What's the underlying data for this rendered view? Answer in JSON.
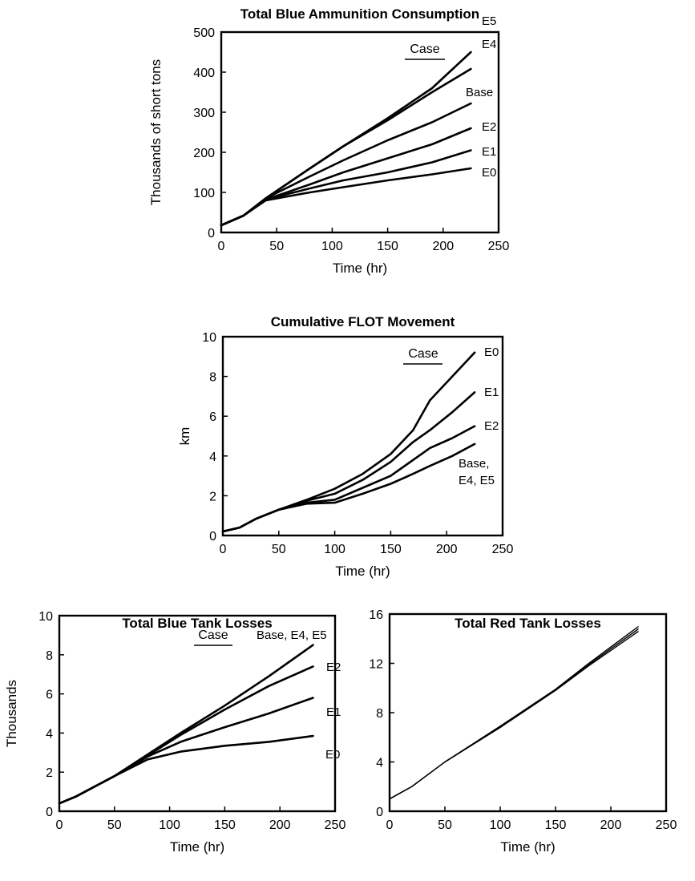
{
  "chart_data": [
    {
      "id": "ammo",
      "type": "line",
      "title": "Total Blue Ammunition Consumption",
      "xlabel": "Time (hr)",
      "ylabel": "Thousands of short tons",
      "xlim": [
        0,
        250
      ],
      "ylim": [
        0,
        500
      ],
      "xticks": [
        0,
        50,
        100,
        150,
        200,
        250
      ],
      "yticks": [
        0,
        100,
        200,
        300,
        400,
        500
      ],
      "legend_heading": "Case",
      "series": [
        {
          "name": "E5",
          "x": [
            0,
            20,
            40,
            80,
            110,
            150,
            190,
            225
          ],
          "y": [
            18,
            42,
            85,
            160,
            215,
            285,
            360,
            450
          ]
        },
        {
          "name": "E4",
          "x": [
            0,
            20,
            40,
            80,
            110,
            150,
            190,
            225
          ],
          "y": [
            18,
            42,
            85,
            160,
            215,
            280,
            350,
            408
          ]
        },
        {
          "name": "Base",
          "x": [
            0,
            20,
            40,
            80,
            110,
            150,
            190,
            225
          ],
          "y": [
            18,
            42,
            85,
            140,
            180,
            230,
            275,
            322
          ]
        },
        {
          "name": "E2",
          "x": [
            0,
            20,
            40,
            80,
            110,
            150,
            190,
            225
          ],
          "y": [
            18,
            42,
            82,
            120,
            150,
            185,
            220,
            260
          ]
        },
        {
          "name": "E1",
          "x": [
            0,
            20,
            40,
            80,
            110,
            150,
            190,
            225
          ],
          "y": [
            18,
            42,
            82,
            110,
            130,
            150,
            175,
            205
          ]
        },
        {
          "name": "E0",
          "x": [
            0,
            20,
            40,
            80,
            110,
            150,
            190,
            225
          ],
          "y": [
            18,
            42,
            80,
            100,
            113,
            130,
            145,
            160
          ]
        }
      ]
    },
    {
      "id": "flot",
      "type": "line",
      "title": "Cumulative FLOT Movement",
      "xlabel": "Time (hr)",
      "ylabel": "km",
      "xlim": [
        0,
        250
      ],
      "ylim": [
        0,
        10
      ],
      "xticks": [
        0,
        50,
        100,
        150,
        200,
        250
      ],
      "yticks": [
        0,
        2,
        4,
        6,
        8,
        10
      ],
      "legend_heading": "Case",
      "series": [
        {
          "name": "E0",
          "x": [
            0,
            15,
            30,
            50,
            75,
            100,
            125,
            150,
            170,
            185,
            205,
            225
          ],
          "y": [
            0.2,
            0.4,
            0.85,
            1.3,
            1.8,
            2.35,
            3.1,
            4.1,
            5.3,
            6.8,
            8.0,
            9.2
          ]
        },
        {
          "name": "E1",
          "x": [
            0,
            15,
            30,
            50,
            75,
            100,
            125,
            150,
            170,
            185,
            205,
            225
          ],
          "y": [
            0.2,
            0.4,
            0.85,
            1.3,
            1.75,
            2.1,
            2.8,
            3.7,
            4.7,
            5.3,
            6.2,
            7.2
          ]
        },
        {
          "name": "E2",
          "x": [
            0,
            15,
            30,
            50,
            75,
            100,
            125,
            150,
            170,
            185,
            205,
            225
          ],
          "y": [
            0.2,
            0.4,
            0.85,
            1.3,
            1.65,
            1.8,
            2.4,
            3.0,
            3.8,
            4.4,
            4.9,
            5.5
          ]
        },
        {
          "name": "Base, E4, E5",
          "x": [
            0,
            15,
            30,
            50,
            75,
            100,
            125,
            150,
            170,
            185,
            205,
            225
          ],
          "y": [
            0.2,
            0.4,
            0.85,
            1.3,
            1.6,
            1.65,
            2.1,
            2.6,
            3.1,
            3.5,
            4.0,
            4.6
          ]
        }
      ]
    },
    {
      "id": "blue_tanks",
      "type": "line",
      "title": "Total Blue Tank Losses",
      "xlabel": "Time (hr)",
      "ylabel": "Thousands",
      "xlim": [
        0,
        250
      ],
      "ylim": [
        0,
        10
      ],
      "xticks": [
        0,
        50,
        100,
        150,
        200,
        250
      ],
      "yticks": [
        0,
        2,
        4,
        6,
        8,
        10
      ],
      "legend_heading": "Case",
      "series": [
        {
          "name": "Base, E4, E5",
          "x": [
            0,
            15,
            50,
            80,
            110,
            150,
            190,
            230
          ],
          "y": [
            0.4,
            0.75,
            1.8,
            2.9,
            4.0,
            5.4,
            6.9,
            8.5
          ]
        },
        {
          "name": "E2",
          "x": [
            0,
            15,
            50,
            80,
            110,
            150,
            190,
            230
          ],
          "y": [
            0.4,
            0.75,
            1.8,
            2.85,
            3.9,
            5.2,
            6.4,
            7.4
          ]
        },
        {
          "name": "E1",
          "x": [
            0,
            15,
            50,
            80,
            110,
            150,
            190,
            230
          ],
          "y": [
            0.4,
            0.75,
            1.8,
            2.8,
            3.55,
            4.3,
            5.0,
            5.8
          ]
        },
        {
          "name": "E0",
          "x": [
            0,
            15,
            50,
            80,
            110,
            150,
            190,
            230
          ],
          "y": [
            0.4,
            0.75,
            1.8,
            2.65,
            3.05,
            3.35,
            3.55,
            3.85
          ]
        }
      ]
    },
    {
      "id": "red_tanks",
      "type": "line",
      "title": "Total Red Tank Losses",
      "xlabel": "Time (hr)",
      "ylabel": "",
      "xlim": [
        0,
        250
      ],
      "ylim": [
        0,
        16
      ],
      "xticks": [
        0,
        50,
        100,
        150,
        200,
        250
      ],
      "yticks": [
        0,
        4,
        8,
        12,
        16
      ],
      "series": [
        {
          "name": "",
          "x": [
            0,
            20,
            50,
            100,
            150,
            180,
            225
          ],
          "y": [
            1.0,
            2.0,
            4.0,
            6.9,
            9.9,
            12.0,
            15.0
          ]
        },
        {
          "name": "",
          "x": [
            0,
            20,
            50,
            100,
            150,
            180,
            225
          ],
          "y": [
            1.0,
            2.0,
            4.0,
            6.85,
            9.85,
            11.9,
            14.8
          ]
        },
        {
          "name": "",
          "x": [
            0,
            20,
            50,
            100,
            150,
            180,
            225
          ],
          "y": [
            1.0,
            2.0,
            4.0,
            6.8,
            9.8,
            11.8,
            14.6
          ]
        }
      ]
    }
  ]
}
